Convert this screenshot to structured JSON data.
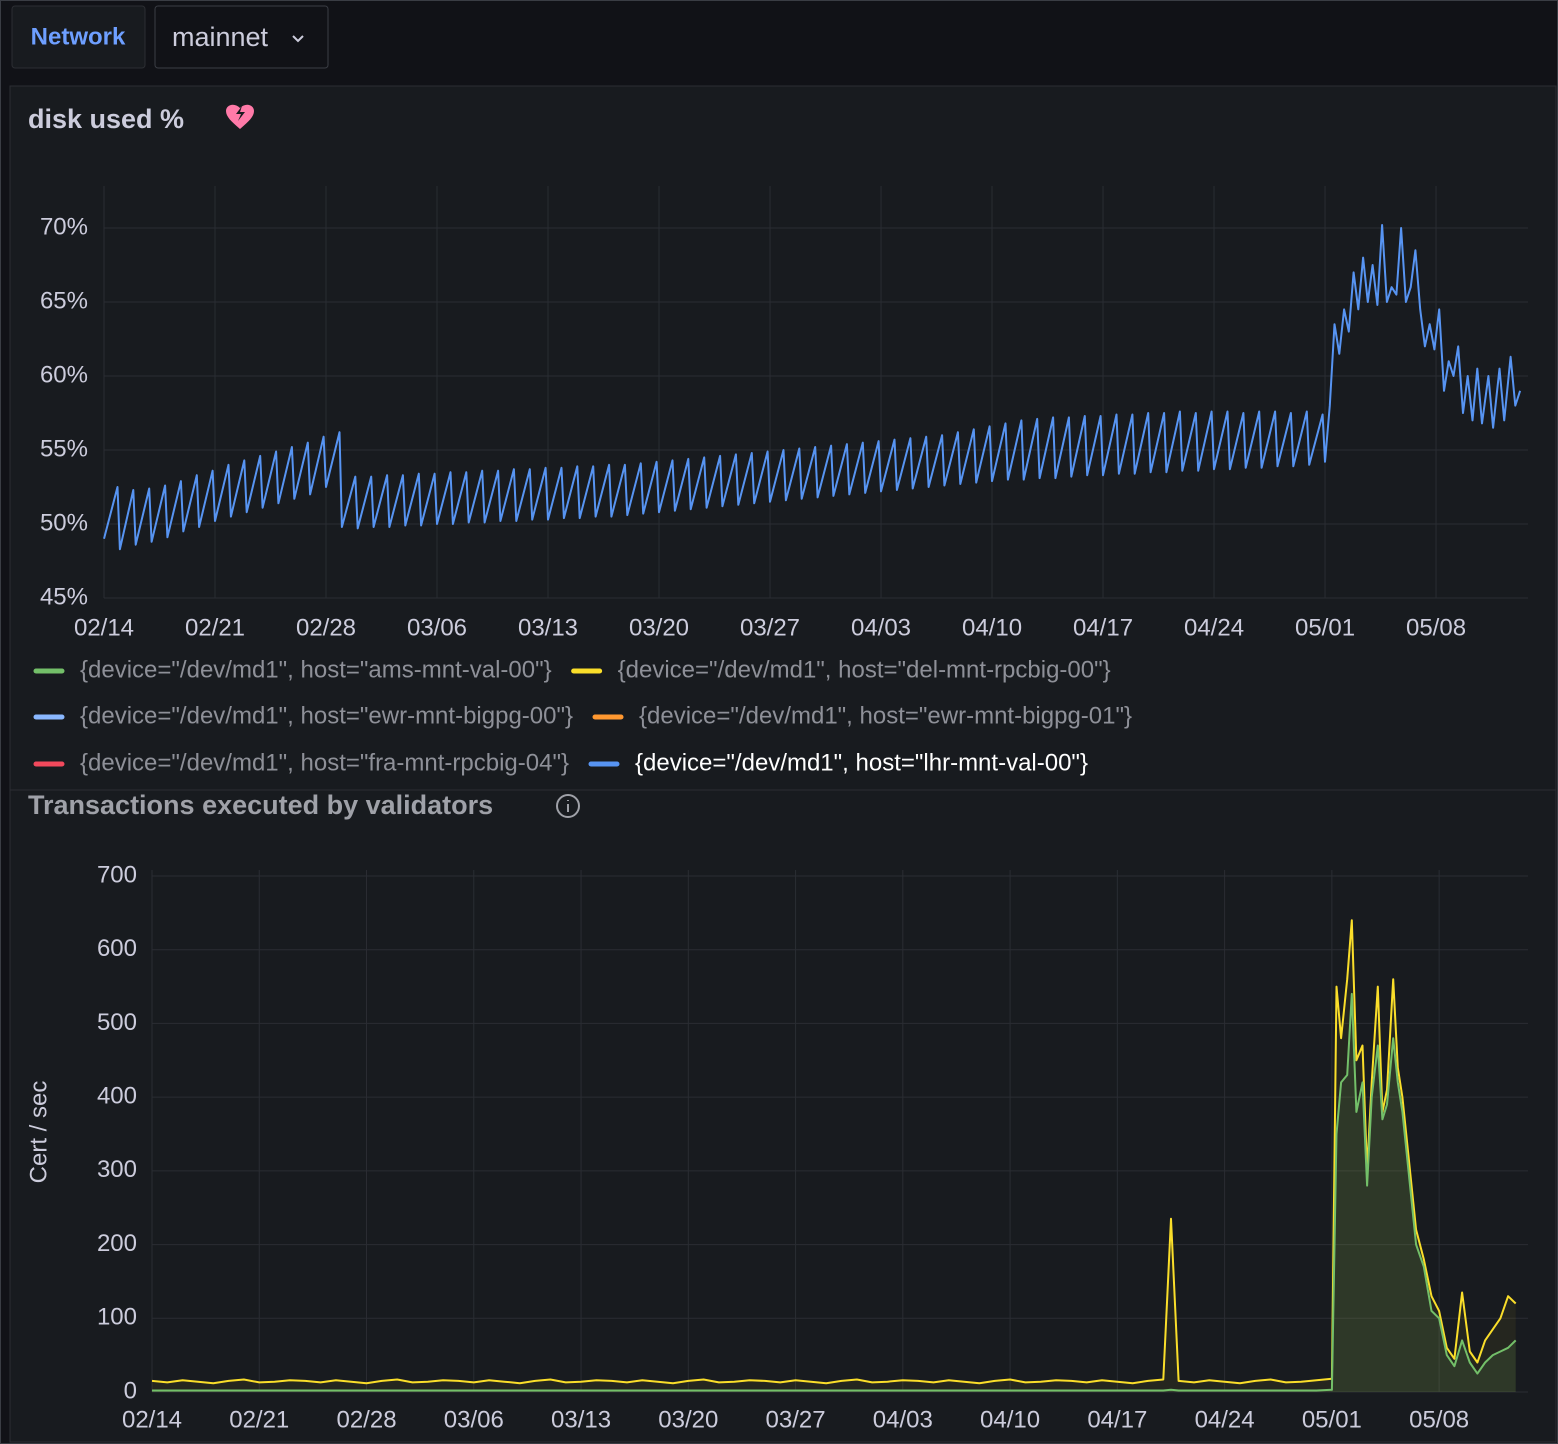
{
  "toolbar": {
    "variable_label": "Network",
    "variable_value": "mainnet"
  },
  "chart_data": [
    {
      "type": "line",
      "title": "disk used %",
      "xlim": [
        0,
        89.8
      ],
      "xticks": [
        {
          "value": 0,
          "label": "02/14"
        },
        {
          "value": 7,
          "label": "02/21"
        },
        {
          "value": 14,
          "label": "02/28"
        },
        {
          "value": 21,
          "label": "03/06"
        },
        {
          "value": 28,
          "label": "03/13"
        },
        {
          "value": 35,
          "label": "03/20"
        },
        {
          "value": 42,
          "label": "03/27"
        },
        {
          "value": 49,
          "label": "04/03"
        },
        {
          "value": 56,
          "label": "04/10"
        },
        {
          "value": 63,
          "label": "04/17"
        },
        {
          "value": 70,
          "label": "04/24"
        },
        {
          "value": 77,
          "label": "05/01"
        },
        {
          "value": 84,
          "label": "05/08"
        }
      ],
      "ylim": [
        45,
        72.5
      ],
      "yticks": [
        {
          "value": 45,
          "label": "45%"
        },
        {
          "value": 50,
          "label": "50%"
        },
        {
          "value": 55,
          "label": "55%"
        },
        {
          "value": 60,
          "label": "60%"
        },
        {
          "value": 65,
          "label": "65%"
        },
        {
          "value": 70,
          "label": "70%"
        }
      ],
      "grid": true,
      "legend": "bottom",
      "x": [
        0,
        0.85,
        1,
        1.85,
        2,
        2.85,
        3,
        3.85,
        4,
        4.85,
        5,
        5.85,
        6,
        6.85,
        7,
        7.85,
        8,
        8.85,
        9,
        9.85,
        10,
        10.85,
        11,
        11.85,
        12,
        12.85,
        13,
        13.85,
        14,
        14.85,
        15,
        15.85,
        16,
        16.85,
        17,
        17.85,
        18,
        18.85,
        19,
        19.85,
        20,
        20.85,
        21,
        21.85,
        22,
        22.85,
        23,
        23.85,
        24,
        24.85,
        25,
        25.85,
        26,
        26.85,
        27,
        27.85,
        28,
        28.85,
        29,
        29.85,
        30,
        30.85,
        31,
        31.85,
        32,
        32.85,
        33,
        33.85,
        34,
        34.85,
        35,
        35.85,
        36,
        36.85,
        37,
        37.85,
        38,
        38.85,
        39,
        39.85,
        40,
        40.85,
        41,
        41.85,
        42,
        42.85,
        43,
        43.85,
        44,
        44.85,
        45,
        45.85,
        46,
        46.85,
        47,
        47.85,
        48,
        48.85,
        49,
        49.85,
        50,
        50.85,
        51,
        51.85,
        52,
        52.85,
        53,
        53.85,
        54,
        54.85,
        55,
        55.85,
        56,
        56.85,
        57,
        57.85,
        58,
        58.85,
        59,
        59.85,
        60,
        60.85,
        61,
        61.85,
        62,
        62.85,
        63,
        63.85,
        64,
        64.85,
        65,
        65.85,
        66,
        66.85,
        67,
        67.85,
        68,
        68.85,
        69,
        69.85,
        70,
        70.85,
        71,
        71.85,
        72,
        72.85,
        73,
        73.85,
        74,
        74.85,
        75,
        75.85,
        76,
        76.85,
        77,
        77.3,
        77.6,
        77.9,
        78.2,
        78.5,
        78.8,
        79.1,
        79.4,
        79.7,
        80,
        80.3,
        80.6,
        80.9,
        81.2,
        81.5,
        81.8,
        82.1,
        82.4,
        82.7,
        83,
        83.3,
        83.6,
        83.9,
        84.2,
        84.5,
        84.8,
        85.1,
        85.4,
        85.7,
        86,
        86.3,
        86.6,
        86.9,
        87.3,
        87.6,
        88,
        88.3,
        88.7,
        89,
        89.3
      ],
      "series": [
        {
          "name": "{device=\"/dev/md1\", host=\"ams-mnt-val-00\"}",
          "color": "#73bf69",
          "visible": false
        },
        {
          "name": "{device=\"/dev/md1\", host=\"del-mnt-rpcbig-00\"}",
          "color": "#fade2a",
          "visible": false
        },
        {
          "name": "{device=\"/dev/md1\", host=\"ewr-mnt-bigpg-00\"}",
          "color": "#8ab8ff",
          "visible": false
        },
        {
          "name": "{device=\"/dev/md1\", host=\"ewr-mnt-bigpg-01\"}",
          "color": "#ff9830",
          "visible": false
        },
        {
          "name": "{device=\"/dev/md1\", host=\"fra-mnt-rpcbig-04\"}",
          "color": "#f2495c",
          "visible": false
        },
        {
          "name": "{device=\"/dev/md1\", host=\"lhr-mnt-val-00\"}",
          "color": "#5794f2",
          "visible": true,
          "values": [
            49,
            52.5,
            48.3,
            52.3,
            48.6,
            52.4,
            48.8,
            52.6,
            49.1,
            52.9,
            49.5,
            53.3,
            49.8,
            53.6,
            50.2,
            54,
            50.5,
            54.3,
            50.8,
            54.6,
            51.1,
            54.9,
            51.4,
            55.2,
            51.7,
            55.5,
            52,
            55.9,
            52.5,
            56.2,
            49.8,
            53.2,
            49.7,
            53.2,
            49.8,
            53.3,
            49.8,
            53.3,
            49.9,
            53.4,
            49.9,
            53.4,
            50,
            53.5,
            50,
            53.5,
            50.1,
            53.6,
            50.1,
            53.6,
            50.2,
            53.7,
            50.2,
            53.7,
            50.3,
            53.8,
            50.3,
            53.8,
            50.4,
            53.9,
            50.4,
            53.9,
            50.5,
            54,
            50.5,
            54,
            50.6,
            54.1,
            50.7,
            54.2,
            50.8,
            54.3,
            50.9,
            54.4,
            51,
            54.5,
            51.1,
            54.6,
            51.2,
            54.7,
            51.3,
            54.8,
            51.4,
            54.9,
            51.5,
            55,
            51.6,
            55.1,
            51.7,
            55.2,
            51.8,
            55.3,
            51.9,
            55.4,
            52,
            55.5,
            52.1,
            55.6,
            52.2,
            55.7,
            52.3,
            55.8,
            52.4,
            55.9,
            52.5,
            56,
            52.6,
            56.2,
            52.7,
            56.4,
            52.8,
            56.6,
            52.9,
            56.8,
            53,
            57,
            53,
            57.1,
            53.1,
            57.2,
            53.1,
            57.2,
            53.2,
            57.3,
            53.3,
            57.3,
            53.3,
            57.4,
            53.4,
            57.4,
            53.4,
            57.5,
            53.5,
            57.5,
            53.5,
            57.6,
            53.6,
            57.5,
            53.6,
            57.6,
            53.7,
            57.6,
            53.7,
            57.5,
            53.8,
            57.6,
            53.8,
            57.6,
            53.9,
            57.5,
            53.9,
            57.6,
            54,
            57.4,
            54.2,
            58,
            63.5,
            61.5,
            64.5,
            63,
            67,
            64.5,
            68,
            65,
            67.5,
            64.8,
            70.2,
            65,
            66,
            65.5,
            70,
            65,
            66,
            68.5,
            64.5,
            62,
            63.5,
            61.8,
            64.5,
            59,
            61,
            60,
            62,
            57.5,
            60,
            57,
            60.5,
            56.8,
            60,
            56.5,
            60.5,
            57,
            61.3,
            58,
            59
          ]
        }
      ]
    },
    {
      "type": "line",
      "title": "Transactions executed by validators",
      "y_label": "Cert / sec",
      "xlim": [
        0,
        89.8
      ],
      "xticks": [
        {
          "value": 0,
          "label": "02/14"
        },
        {
          "value": 7,
          "label": "02/21"
        },
        {
          "value": 14,
          "label": "02/28"
        },
        {
          "value": 21,
          "label": "03/06"
        },
        {
          "value": 28,
          "label": "03/13"
        },
        {
          "value": 35,
          "label": "03/20"
        },
        {
          "value": 42,
          "label": "03/27"
        },
        {
          "value": 49,
          "label": "04/03"
        },
        {
          "value": 56,
          "label": "04/10"
        },
        {
          "value": 63,
          "label": "04/17"
        },
        {
          "value": 70,
          "label": "04/24"
        },
        {
          "value": 77,
          "label": "05/01"
        },
        {
          "value": 84,
          "label": "05/08"
        }
      ],
      "ylim": [
        0,
        700
      ],
      "yticks": [
        0,
        100,
        200,
        300,
        400,
        500,
        600,
        700
      ],
      "grid": true,
      "x": [
        0,
        1,
        2,
        3,
        4,
        5,
        6,
        7,
        8,
        9,
        10,
        11,
        12,
        13,
        14,
        15,
        16,
        17,
        18,
        19,
        20,
        21,
        22,
        23,
        24,
        25,
        26,
        27,
        28,
        29,
        30,
        31,
        32,
        33,
        34,
        35,
        36,
        37,
        38,
        39,
        40,
        41,
        42,
        43,
        44,
        45,
        46,
        47,
        48,
        49,
        50,
        51,
        52,
        53,
        54,
        55,
        56,
        57,
        58,
        59,
        60,
        61,
        62,
        63,
        64,
        65,
        66,
        66.5,
        67,
        68,
        69,
        70,
        71,
        72,
        73,
        74,
        75,
        76,
        77,
        77.3,
        77.6,
        78,
        78.3,
        78.6,
        79,
        79.3,
        79.6,
        80,
        80.3,
        80.6,
        81,
        81.3,
        81.6,
        82,
        82.5,
        83,
        83.5,
        84,
        84.5,
        85,
        85.5,
        86,
        86.5,
        87,
        87.5,
        88,
        88.5,
        89
      ],
      "series": [
        {
          "color": "#fade2a",
          "fill_opacity": 0.06,
          "values": [
            15,
            13,
            16,
            14,
            12,
            15,
            17,
            13,
            14,
            16,
            15,
            13,
            16,
            14,
            12,
            15,
            17,
            13,
            14,
            16,
            15,
            13,
            16,
            14,
            12,
            15,
            17,
            13,
            14,
            16,
            15,
            13,
            16,
            14,
            12,
            15,
            17,
            13,
            14,
            16,
            15,
            13,
            16,
            14,
            12,
            15,
            17,
            13,
            14,
            16,
            15,
            13,
            16,
            14,
            12,
            15,
            17,
            13,
            14,
            16,
            15,
            13,
            16,
            14,
            12,
            15,
            17,
            235,
            15,
            13,
            16,
            14,
            12,
            15,
            17,
            13,
            14,
            16,
            18,
            550,
            480,
            560,
            640,
            450,
            470,
            300,
            420,
            550,
            380,
            410,
            560,
            440,
            400,
            320,
            220,
            180,
            130,
            110,
            60,
            45,
            135,
            55,
            40,
            70,
            85,
            100,
            130,
            120
          ]
        },
        {
          "color": "#73bf69",
          "fill_opacity": 0.12,
          "values": [
            2,
            2,
            2,
            2,
            2,
            2,
            2,
            2,
            2,
            2,
            2,
            2,
            2,
            2,
            2,
            2,
            2,
            2,
            2,
            2,
            2,
            2,
            2,
            2,
            2,
            2,
            2,
            2,
            2,
            2,
            2,
            2,
            2,
            2,
            2,
            2,
            2,
            2,
            2,
            2,
            2,
            2,
            2,
            2,
            2,
            2,
            2,
            2,
            2,
            2,
            2,
            2,
            2,
            2,
            2,
            2,
            2,
            2,
            2,
            2,
            2,
            2,
            2,
            2,
            2,
            2,
            2,
            3,
            2,
            2,
            2,
            2,
            2,
            2,
            2,
            2,
            2,
            2,
            3,
            350,
            420,
            430,
            540,
            380,
            420,
            280,
            400,
            470,
            370,
            390,
            480,
            420,
            380,
            300,
            200,
            170,
            110,
            100,
            50,
            35,
            70,
            40,
            25,
            40,
            50,
            55,
            60,
            70
          ]
        }
      ]
    }
  ]
}
